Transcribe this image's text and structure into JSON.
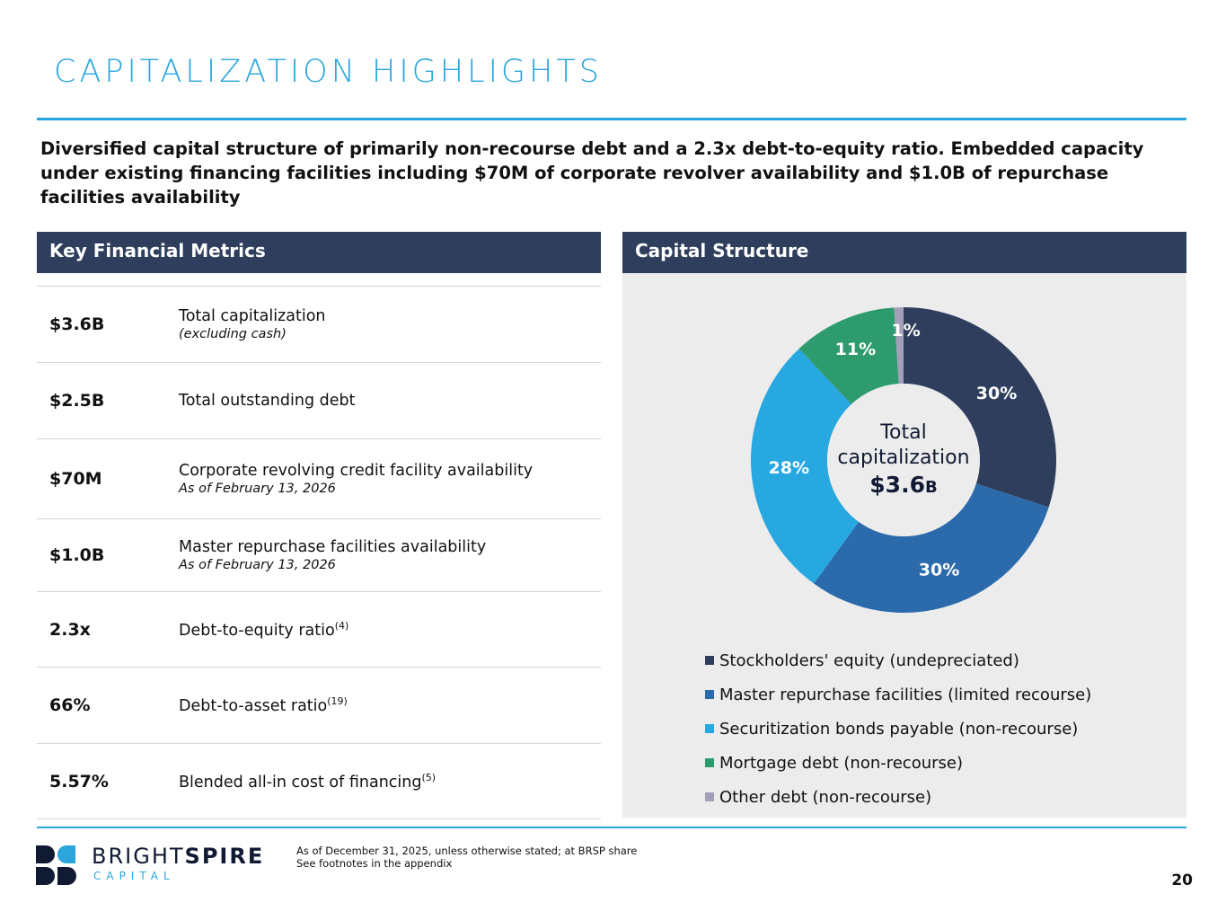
{
  "title": "CAPITALIZATION HIGHLIGHTS",
  "lead": "Diversified capital structure of primarily non-recourse debt and a 2.3x debt-to-equity ratio. Embedded capacity under existing financing facilities including $70M of corporate revolver availability and $1.0B of repurchase facilities availability",
  "metrics": {
    "header": "Key Financial Metrics",
    "rows": [
      {
        "value": "$3.6B",
        "label": "Total capitalization",
        "note": "(excluding cash)",
        "sup": ""
      },
      {
        "value": "$2.5B",
        "label": "Total outstanding debt",
        "note": "",
        "sup": ""
      },
      {
        "value": "$70M",
        "label": "Corporate revolving credit facility availability",
        "note": "As of February 13, 2026",
        "sup": ""
      },
      {
        "value": "$1.0B",
        "label": "Master repurchase facilities availability",
        "note": "As of February 13, 2026",
        "sup": ""
      },
      {
        "value": "2.3x",
        "label": "Debt-to-equity ratio",
        "note": "",
        "sup": "(4)"
      },
      {
        "value": "66%",
        "label": "Debt-to-asset ratio",
        "note": "",
        "sup": "(19)"
      },
      {
        "value": "5.57%",
        "label": "Blended all-in cost of financing",
        "note": "",
        "sup": "(5)"
      }
    ]
  },
  "capital": {
    "header": "Capital Structure"
  },
  "chart_data": {
    "type": "pie",
    "donut": true,
    "center_label": {
      "line1": "Total",
      "line2": "capitalization",
      "value": "$3.6",
      "unit": "B"
    },
    "categories": [
      "Stockholders' equity (undepreciated)",
      "Master repurchase facilities (limited recourse)",
      "Securitization bonds payable (non-recourse)",
      "Mortgage debt (non-recourse)",
      "Other debt (non-recourse)"
    ],
    "values": [
      30,
      30,
      28,
      11,
      1
    ],
    "labels": [
      "30%",
      "30%",
      "28%",
      "11%",
      "1%"
    ],
    "colors": [
      "#2e3e5c",
      "#2b6aab",
      "#28a8e0",
      "#2e9b6e",
      "#a39fb8"
    ],
    "legend_position": "bottom"
  },
  "footer": {
    "line1": "As of December 31, 2025, unless otherwise stated; at BRSP share",
    "line2": "See footnotes in the appendix",
    "page": "20"
  },
  "logo": {
    "text1": "BRIGHT",
    "text2": "SPIRE",
    "text3": "CAPITAL"
  }
}
